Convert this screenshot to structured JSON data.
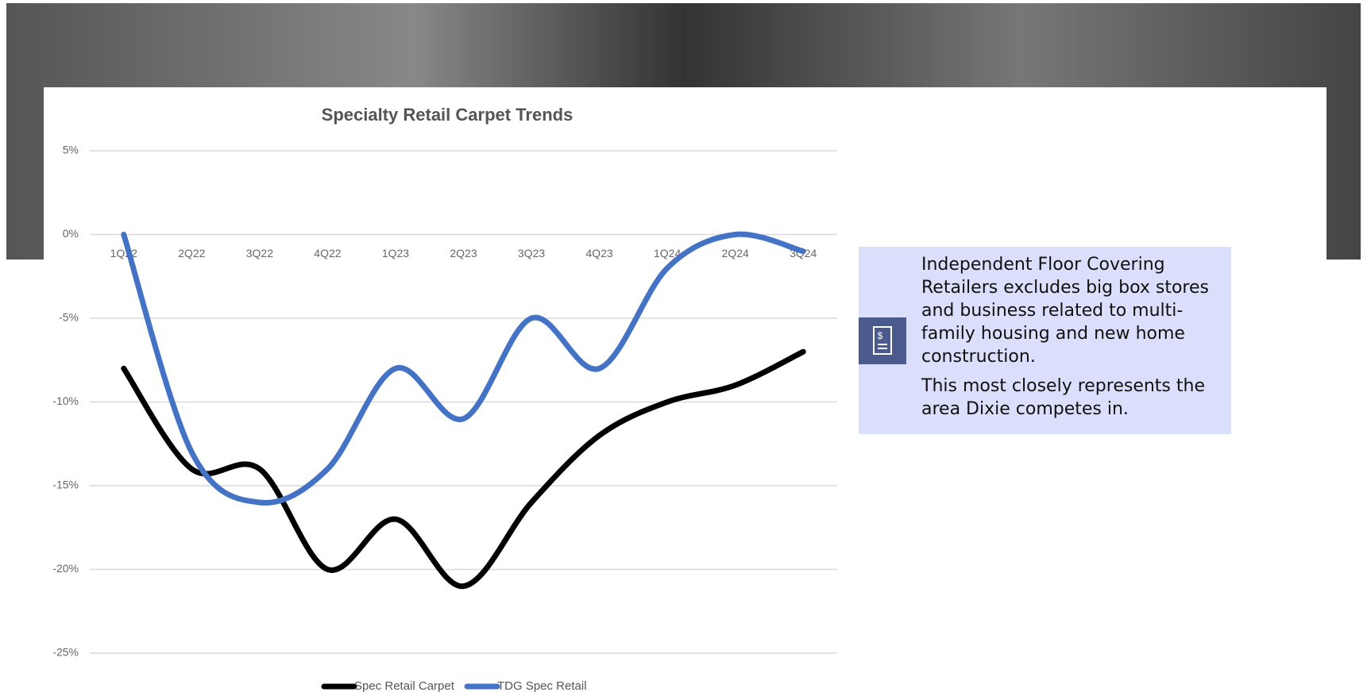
{
  "chart_data": {
    "type": "line",
    "title": "Specialty Retail Carpet Trends",
    "categories": [
      "1Q22",
      "2Q22",
      "3Q22",
      "4Q22",
      "1Q23",
      "2Q23",
      "3Q23",
      "4Q23",
      "1Q24",
      "2Q24",
      "3Q24"
    ],
    "series": [
      {
        "name": "Spec Retail Carpet",
        "color": "#000000",
        "values": [
          -8,
          -14,
          -14,
          -20,
          -17,
          -21,
          -16,
          -12,
          -10,
          -9,
          -7
        ]
      },
      {
        "name": "TDG Spec Retail",
        "color": "#4472c4",
        "values": [
          0,
          -13,
          -16,
          -14,
          -8,
          -11,
          -5,
          -8,
          -2,
          0,
          -1
        ]
      }
    ],
    "ylim": [
      -25,
      5
    ],
    "yticks": [
      {
        "value": 5,
        "label": "5%"
      },
      {
        "value": 0,
        "label": "0%"
      },
      {
        "value": -5,
        "label": "-5%"
      },
      {
        "value": -10,
        "label": "-10%"
      },
      {
        "value": -15,
        "label": "-15%"
      },
      {
        "value": -20,
        "label": "-20%"
      },
      {
        "value": -25,
        "label": "-25%"
      }
    ],
    "grid": true,
    "legend": "bottom"
  },
  "note": {
    "paragraphs": [
      "Independent Floor Covering Retailers excludes big box stores and business related to multi-family housing and new home construction.",
      "This most closely represents the area Dixie competes in."
    ]
  }
}
